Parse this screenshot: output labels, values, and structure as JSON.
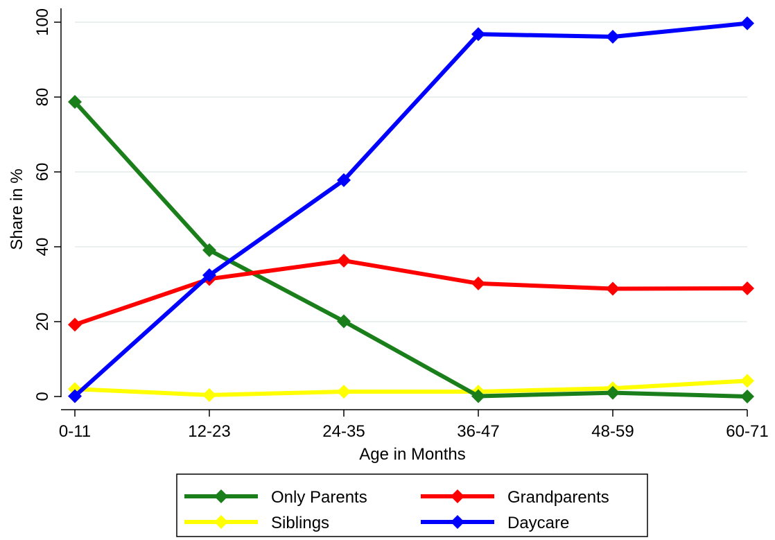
{
  "chart_data": {
    "type": "line",
    "xlabel": "Age in Months",
    "ylabel": "Share in %",
    "categories": [
      "0-11",
      "12-23",
      "24-35",
      "36-47",
      "48-59",
      "60-71"
    ],
    "ylim": [
      0,
      100
    ],
    "yticks": [
      0,
      20,
      40,
      60,
      80,
      100
    ],
    "grid": "horizontal",
    "legend_position": "bottom",
    "series": [
      {
        "name": "Only Parents",
        "color": "#1a7f1a",
        "marker": "diamond",
        "values": [
          78.7,
          39.1,
          20.1,
          0.1,
          1.0,
          0.0
        ]
      },
      {
        "name": "Grandparents",
        "color": "#ff0000",
        "marker": "diamond",
        "values": [
          19.2,
          31.4,
          36.3,
          30.2,
          28.8,
          28.9
        ]
      },
      {
        "name": "Siblings",
        "color": "#ffff00",
        "marker": "diamond",
        "values": [
          2.0,
          0.4,
          1.3,
          1.3,
          2.2,
          4.2
        ]
      },
      {
        "name": "Daycare",
        "color": "#0000ff",
        "marker": "diamond",
        "values": [
          0.1,
          32.4,
          57.8,
          96.8,
          96.1,
          99.7
        ]
      }
    ]
  }
}
